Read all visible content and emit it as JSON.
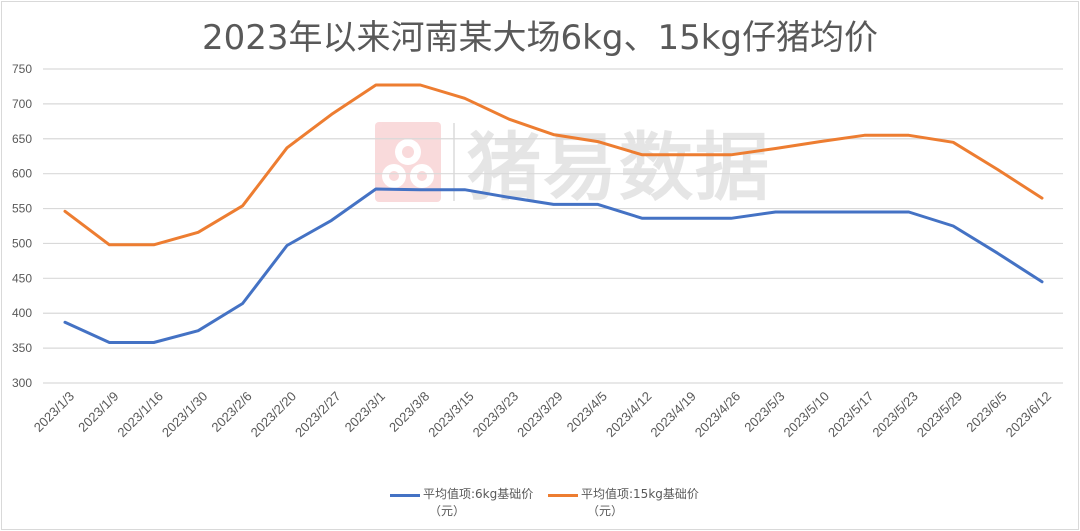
{
  "chart_data": {
    "type": "line",
    "title": "2023年以来河南某大场6kg、15kg仔猪均价",
    "xlabel": "",
    "ylabel": "",
    "ylim": [
      300,
      750
    ],
    "yticks": [
      300,
      350,
      400,
      450,
      500,
      550,
      600,
      650,
      700,
      750
    ],
    "grid": true,
    "legend_position": "bottom",
    "categories": [
      "2023/1/3",
      "2023/1/9",
      "2023/1/16",
      "2023/1/30",
      "2023/2/6",
      "2023/2/20",
      "2023/2/27",
      "2023/3/1",
      "2023/3/8",
      "2023/3/15",
      "2023/3/23",
      "2023/3/29",
      "2023/4/5",
      "2023/4/12",
      "2023/4/19",
      "2023/4/26",
      "2023/5/3",
      "2023/5/10",
      "2023/5/17",
      "2023/5/23",
      "2023/5/29",
      "2023/6/5",
      "2023/6/12"
    ],
    "series": [
      {
        "name": "平均值项:6kg基础价（元）",
        "color": "#4472c4",
        "values": [
          387,
          358,
          358,
          375,
          414,
          497,
          533,
          578,
          577,
          577,
          566,
          556,
          556,
          536,
          536,
          536,
          545,
          545,
          545,
          545,
          525,
          486,
          445
        ]
      },
      {
        "name": "平均值项:15kg基础价（元）",
        "color": "#ed7d31",
        "values": [
          546,
          498,
          498,
          516,
          554,
          637,
          685,
          727,
          727,
          708,
          678,
          656,
          646,
          627,
          627,
          627,
          636,
          646,
          655,
          655,
          645,
          606,
          565
        ]
      }
    ]
  },
  "legend": {
    "items": [
      {
        "line1": "平均值项:6kg基础价",
        "line2": "（元）",
        "color": "#4472c4"
      },
      {
        "line1": "平均值项:15kg基础价",
        "line2": "（元）",
        "color": "#ed7d31"
      }
    ]
  },
  "watermark": {
    "text": "猪易数据"
  }
}
